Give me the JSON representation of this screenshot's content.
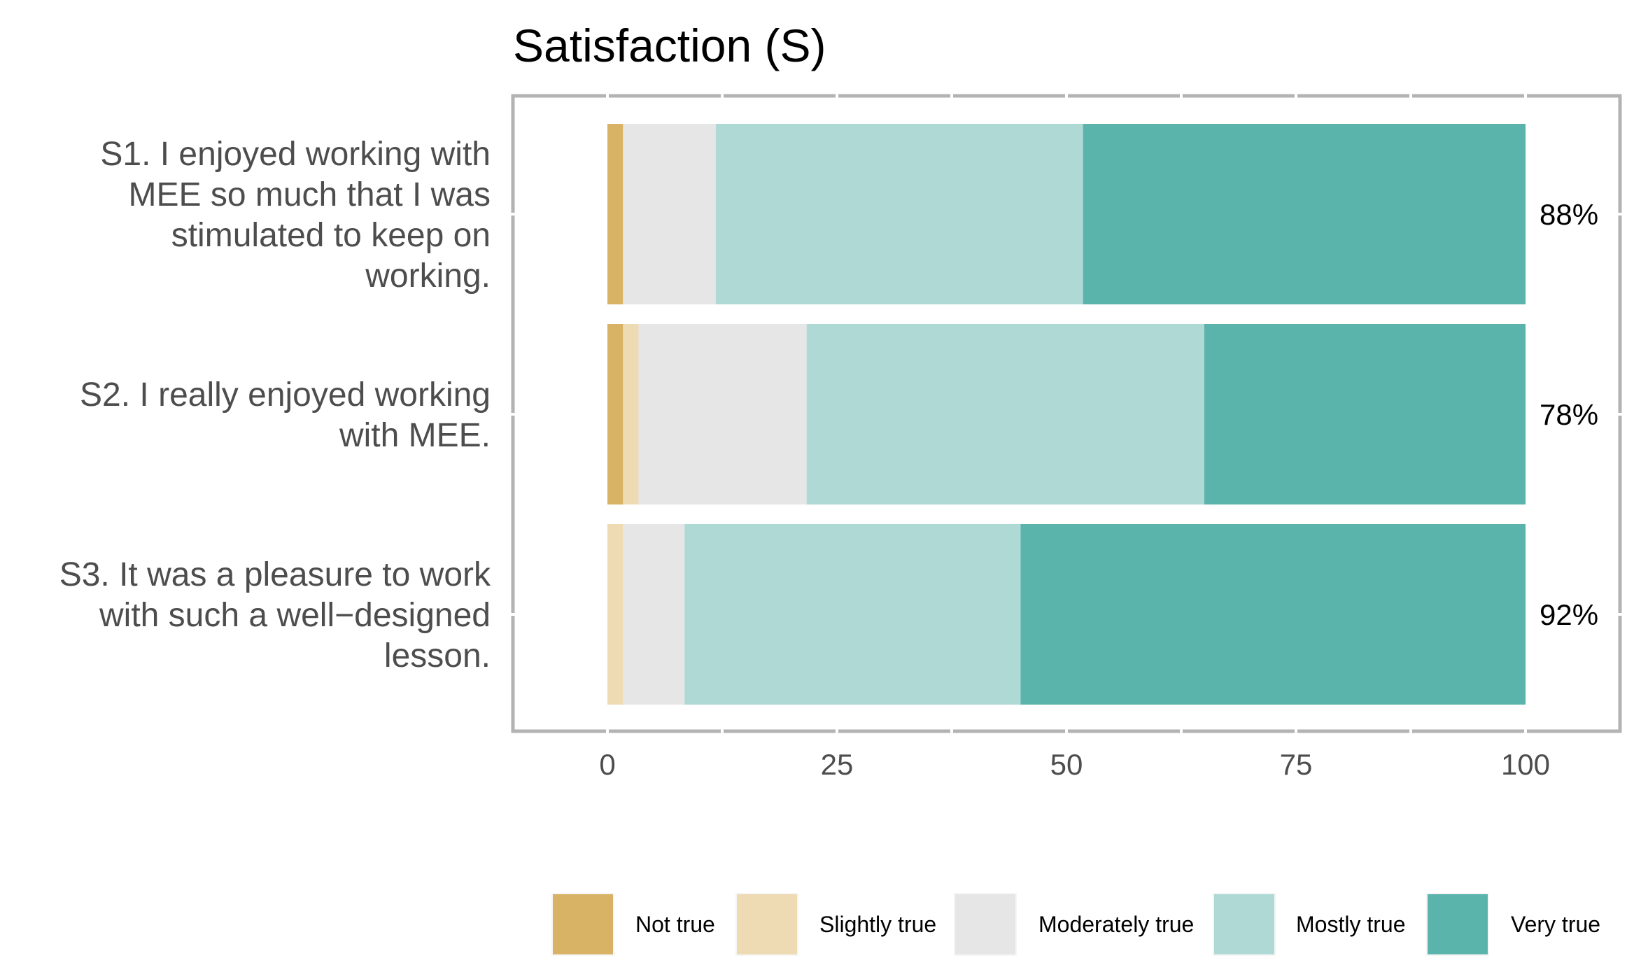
{
  "chart_data": {
    "type": "bar",
    "orientation": "horizontal",
    "stacked": true,
    "title": "Satisfaction (S)",
    "xlabel": "",
    "ylabel": "",
    "xlim": [
      -10,
      110
    ],
    "xticks": [
      0,
      25,
      50,
      75,
      100
    ],
    "categories": [
      [
        "S1. I enjoyed working with",
        "MEE so much that I was",
        "stimulated to keep on",
        "working."
      ],
      [
        "S2. I really enjoyed working",
        "with MEE."
      ],
      [
        "S3. It was a pleasure to work",
        "with such a well−designed",
        "lesson."
      ]
    ],
    "series": [
      {
        "name": "Not true",
        "color": "#d8b365",
        "values": [
          1.7,
          1.7,
          0
        ]
      },
      {
        "name": "Slightly true",
        "color": "#eedbb3",
        "values": [
          0,
          1.7,
          1.7
        ]
      },
      {
        "name": "Moderately true",
        "color": "#e6e6e6",
        "values": [
          10.1,
          18.3,
          6.7
        ]
      },
      {
        "name": "Mostly true",
        "color": "#aed9d5",
        "values": [
          40.0,
          43.3,
          36.6
        ]
      },
      {
        "name": "Very true",
        "color": "#5ab4ac",
        "values": [
          48.2,
          35.0,
          55.0
        ]
      }
    ],
    "right_labels": [
      "88%",
      "78%",
      "92%"
    ],
    "legend_position": "bottom"
  }
}
